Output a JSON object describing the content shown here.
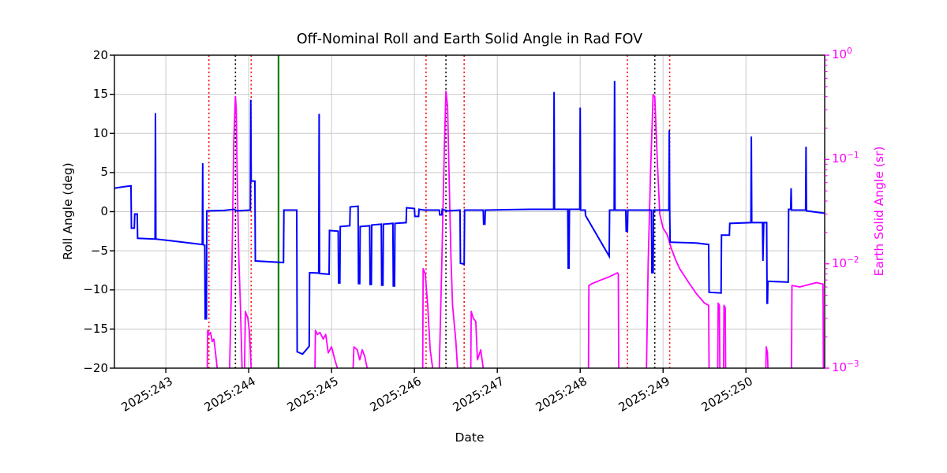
{
  "figure": {
    "title": "Off-Nominal Roll and Earth Solid Angle in Rad FOV",
    "xlabel": "Date",
    "ylabel_left": "Roll Angle (deg)",
    "ylabel_right": "Earth Solid Angle (sr)"
  },
  "colors": {
    "roll_line": "#0000ff",
    "solid_angle_line": "#ff00ff",
    "red_vline": "#ff0000",
    "black_vline": "#000000",
    "green_vline": "#008000",
    "grid": "#c9c9c9",
    "spine": "#000000",
    "right_axis_text": "#ff00ff"
  },
  "chart_data": {
    "type": "line",
    "title": "Off-Nominal Roll and Earth Solid Angle in Rad FOV",
    "xlabel": "Date",
    "grid": true,
    "legend": null,
    "xlim": [
      242.38,
      250.95
    ],
    "x_ticks": [
      "2025:243",
      "2025:244",
      "2025:245",
      "2025:246",
      "2025:247",
      "2025:248",
      "2025:249",
      "2025:250"
    ],
    "x_tick_days": [
      243,
      244,
      245,
      246,
      247,
      248,
      249,
      250
    ],
    "left_axis": {
      "label": "Roll Angle (deg)",
      "ylim": [
        -20,
        20
      ],
      "ticks": [
        20,
        15,
        10,
        5,
        0,
        -5,
        -10,
        -15,
        -20
      ]
    },
    "right_axis": {
      "label": "Earth Solid Angle (sr)",
      "scale": "log",
      "ylim": [
        0.001,
        1
      ],
      "tick_exponents": [
        0,
        -1,
        -2,
        -3
      ]
    },
    "vlines": {
      "red_dotted": [
        243.52,
        244.03,
        246.14,
        246.6,
        248.57,
        249.08
      ],
      "black_dotted": [
        243.84,
        246.38,
        248.9
      ],
      "green_solid": [
        244.36
      ]
    },
    "series": [
      {
        "name": "roll_angle_deg",
        "axis": "left",
        "color": "#0000ff",
        "points": [
          [
            242.38,
            3.0
          ],
          [
            242.5,
            3.2
          ],
          [
            242.58,
            3.3
          ],
          [
            242.585,
            -2.1
          ],
          [
            242.62,
            -2.1
          ],
          [
            242.625,
            -0.3
          ],
          [
            242.655,
            -0.3
          ],
          [
            242.66,
            -3.4
          ],
          [
            242.87,
            -3.5
          ],
          [
            242.875,
            12.6
          ],
          [
            242.88,
            -3.5
          ],
          [
            243.05,
            -3.7
          ],
          [
            243.44,
            -4.2
          ],
          [
            243.445,
            6.2
          ],
          [
            243.45,
            -4.2
          ],
          [
            243.47,
            -4.3
          ],
          [
            243.475,
            -13.7
          ],
          [
            243.49,
            -13.7
          ],
          [
            243.495,
            0.1
          ],
          [
            243.7,
            0.15
          ],
          [
            243.82,
            0.3
          ],
          [
            243.86,
            0.1
          ],
          [
            244.02,
            0.2
          ],
          [
            244.025,
            14.3
          ],
          [
            244.03,
            3.9
          ],
          [
            244.075,
            3.9
          ],
          [
            244.08,
            -6.3
          ],
          [
            244.42,
            -6.5
          ],
          [
            244.425,
            0.2
          ],
          [
            244.58,
            0.2
          ],
          [
            244.585,
            -17.9
          ],
          [
            244.65,
            -18.2
          ],
          [
            244.73,
            -17.2
          ],
          [
            244.735,
            -7.8
          ],
          [
            244.845,
            -7.85
          ],
          [
            244.85,
            12.5
          ],
          [
            244.855,
            -7.9
          ],
          [
            244.97,
            -8.0
          ],
          [
            244.975,
            -2.4
          ],
          [
            245.08,
            -2.5
          ],
          [
            245.085,
            -9.1
          ],
          [
            245.1,
            -9.1
          ],
          [
            245.105,
            -1.9
          ],
          [
            245.22,
            -1.8
          ],
          [
            245.225,
            0.6
          ],
          [
            245.32,
            0.7
          ],
          [
            245.325,
            -9.2
          ],
          [
            245.34,
            -9.2
          ],
          [
            245.345,
            -1.9
          ],
          [
            245.46,
            -1.8
          ],
          [
            245.465,
            -9.3
          ],
          [
            245.48,
            -9.3
          ],
          [
            245.485,
            -1.7
          ],
          [
            245.6,
            -1.6
          ],
          [
            245.605,
            -9.4
          ],
          [
            245.62,
            -9.4
          ],
          [
            245.625,
            -1.6
          ],
          [
            245.74,
            -1.5
          ],
          [
            245.745,
            -9.5
          ],
          [
            245.76,
            -9.5
          ],
          [
            245.765,
            -1.5
          ],
          [
            245.9,
            -1.4
          ],
          [
            245.905,
            0.5
          ],
          [
            246.0,
            0.4
          ],
          [
            246.005,
            -0.6
          ],
          [
            246.05,
            -0.6
          ],
          [
            246.055,
            0.3
          ],
          [
            246.12,
            0.2
          ],
          [
            246.3,
            0.2
          ],
          [
            246.305,
            -0.4
          ],
          [
            246.33,
            -0.4
          ],
          [
            246.335,
            0.3
          ],
          [
            246.4,
            0.1
          ],
          [
            246.55,
            0.2
          ],
          [
            246.555,
            -6.6
          ],
          [
            246.6,
            -6.7
          ],
          [
            246.605,
            0.2
          ],
          [
            246.83,
            0.2
          ],
          [
            246.835,
            -1.6
          ],
          [
            246.85,
            -1.6
          ],
          [
            246.855,
            0.2
          ],
          [
            247.1,
            0.25
          ],
          [
            247.4,
            0.3
          ],
          [
            247.68,
            0.3
          ],
          [
            247.685,
            15.3
          ],
          [
            247.69,
            0.3
          ],
          [
            247.85,
            0.3
          ],
          [
            247.855,
            -7.2
          ],
          [
            247.865,
            -7.2
          ],
          [
            247.87,
            0.3
          ],
          [
            247.995,
            0.3
          ],
          [
            248.0,
            13.3
          ],
          [
            248.005,
            0.2
          ],
          [
            248.06,
            0.2
          ],
          [
            248.065,
            -0.5
          ],
          [
            248.35,
            -5.7
          ],
          [
            248.355,
            0.2
          ],
          [
            248.41,
            0.2
          ],
          [
            248.415,
            16.7
          ],
          [
            248.42,
            0.2
          ],
          [
            248.55,
            0.2
          ],
          [
            248.555,
            -2.5
          ],
          [
            248.57,
            -2.5
          ],
          [
            248.575,
            0.2
          ],
          [
            248.86,
            0.2
          ],
          [
            248.865,
            -7.8
          ],
          [
            248.88,
            -7.8
          ],
          [
            248.885,
            0.2
          ],
          [
            249.07,
            0.2
          ],
          [
            249.075,
            10.4
          ],
          [
            249.08,
            0.1
          ],
          [
            249.085,
            -3.9
          ],
          [
            249.4,
            -4.0
          ],
          [
            249.55,
            -4.2
          ],
          [
            249.555,
            -10.3
          ],
          [
            249.7,
            -10.4
          ],
          [
            249.705,
            -3.0
          ],
          [
            249.8,
            -3.0
          ],
          [
            249.805,
            -1.5
          ],
          [
            250.06,
            -1.4
          ],
          [
            250.065,
            9.6
          ],
          [
            250.07,
            -1.4
          ],
          [
            250.2,
            -1.4
          ],
          [
            250.205,
            -6.3
          ],
          [
            250.215,
            -1.4
          ],
          [
            250.25,
            -1.4
          ],
          [
            250.255,
            -11.7
          ],
          [
            250.26,
            -11.7
          ],
          [
            250.265,
            -8.9
          ],
          [
            250.51,
            -9.0
          ],
          [
            250.515,
            0.3
          ],
          [
            250.54,
            0.3
          ],
          [
            250.545,
            3.0
          ],
          [
            250.55,
            0.2
          ],
          [
            250.72,
            0.2
          ],
          [
            250.725,
            8.3
          ],
          [
            250.73,
            0.1
          ],
          [
            250.95,
            -0.2
          ]
        ]
      },
      {
        "name": "earth_solid_angle_sr",
        "axis": "right",
        "color": "#ff00ff",
        "segments": [
          [
            [
              243.5,
              0.001
            ],
            [
              243.505,
              0.0023
            ],
            [
              243.52,
              0.0021
            ],
            [
              243.54,
              0.0022
            ],
            [
              243.56,
              0.0018
            ],
            [
              243.58,
              0.0019
            ],
            [
              243.6,
              0.0014
            ],
            [
              243.62,
              0.001
            ]
          ],
          [
            [
              243.77,
              0.001
            ],
            [
              243.8,
              0.012
            ],
            [
              243.82,
              0.15
            ],
            [
              243.84,
              0.4
            ],
            [
              243.85,
              0.3
            ],
            [
              243.86,
              0.08
            ],
            [
              243.88,
              0.012
            ],
            [
              243.9,
              0.004
            ],
            [
              243.92,
              0.001
            ]
          ],
          [
            [
              243.95,
              0.001
            ],
            [
              243.96,
              0.0035
            ],
            [
              243.99,
              0.003
            ],
            [
              244.01,
              0.0022
            ],
            [
              244.03,
              0.001
            ]
          ],
          [
            [
              244.8,
              0.001
            ],
            [
              244.805,
              0.0023
            ],
            [
              244.83,
              0.0021
            ],
            [
              244.86,
              0.0022
            ],
            [
              244.9,
              0.0019
            ],
            [
              244.93,
              0.0021
            ],
            [
              244.96,
              0.0014
            ],
            [
              245.0,
              0.0016
            ],
            [
              245.04,
              0.0012
            ],
            [
              245.07,
              0.001
            ]
          ],
          [
            [
              245.26,
              0.001
            ],
            [
              245.27,
              0.0016
            ],
            [
              245.31,
              0.0015
            ],
            [
              245.34,
              0.0012
            ],
            [
              245.37,
              0.0015
            ],
            [
              245.4,
              0.0013
            ],
            [
              245.43,
              0.001
            ]
          ],
          [
            [
              246.1,
              0.001
            ],
            [
              246.105,
              0.009
            ],
            [
              246.13,
              0.008
            ],
            [
              246.16,
              0.004
            ],
            [
              246.19,
              0.0015
            ],
            [
              246.22,
              0.001
            ]
          ],
          [
            [
              246.3,
              0.001
            ],
            [
              246.33,
              0.01
            ],
            [
              246.36,
              0.12
            ],
            [
              246.38,
              0.45
            ],
            [
              246.4,
              0.32
            ],
            [
              246.42,
              0.06
            ],
            [
              246.44,
              0.012
            ],
            [
              246.46,
              0.004
            ],
            [
              246.5,
              0.0018
            ],
            [
              246.52,
              0.001
            ]
          ],
          [
            [
              246.68,
              0.001
            ],
            [
              246.685,
              0.0035
            ],
            [
              246.71,
              0.003
            ],
            [
              246.74,
              0.0028
            ],
            [
              246.76,
              0.0012
            ],
            [
              246.8,
              0.0015
            ],
            [
              246.83,
              0.001
            ]
          ],
          [
            [
              248.1,
              0.001
            ],
            [
              248.105,
              0.0062
            ],
            [
              248.15,
              0.0065
            ],
            [
              248.25,
              0.007
            ],
            [
              248.35,
              0.0075
            ],
            [
              248.45,
              0.0082
            ],
            [
              248.46,
              0.008
            ],
            [
              248.465,
              0.001
            ]
          ],
          [
            [
              248.8,
              0.001
            ],
            [
              248.82,
              0.01
            ],
            [
              248.85,
              0.08
            ],
            [
              248.88,
              0.42
            ],
            [
              248.9,
              0.4
            ],
            [
              248.93,
              0.1
            ],
            [
              248.96,
              0.03
            ],
            [
              249.0,
              0.022
            ],
            [
              249.05,
              0.019
            ],
            [
              249.1,
              0.014
            ],
            [
              249.15,
              0.011
            ],
            [
              249.2,
              0.009
            ],
            [
              249.3,
              0.0068
            ],
            [
              249.4,
              0.0052
            ],
            [
              249.5,
              0.0042
            ],
            [
              249.55,
              0.004
            ],
            [
              249.555,
              0.001
            ]
          ],
          [
            [
              249.66,
              0.001
            ],
            [
              249.665,
              0.0042
            ],
            [
              249.68,
              0.004
            ],
            [
              249.685,
              0.001
            ]
          ],
          [
            [
              249.73,
              0.001
            ],
            [
              249.735,
              0.004
            ],
            [
              249.75,
              0.0038
            ],
            [
              249.755,
              0.001
            ]
          ],
          [
            [
              250.24,
              0.001
            ],
            [
              250.245,
              0.0016
            ],
            [
              250.26,
              0.0014
            ],
            [
              250.265,
              0.001
            ]
          ],
          [
            [
              250.55,
              0.001
            ],
            [
              250.555,
              0.0062
            ],
            [
              250.65,
              0.006
            ],
            [
              250.75,
              0.0063
            ],
            [
              250.85,
              0.0066
            ],
            [
              250.93,
              0.0064
            ],
            [
              250.935,
              0.001
            ]
          ]
        ]
      }
    ]
  }
}
